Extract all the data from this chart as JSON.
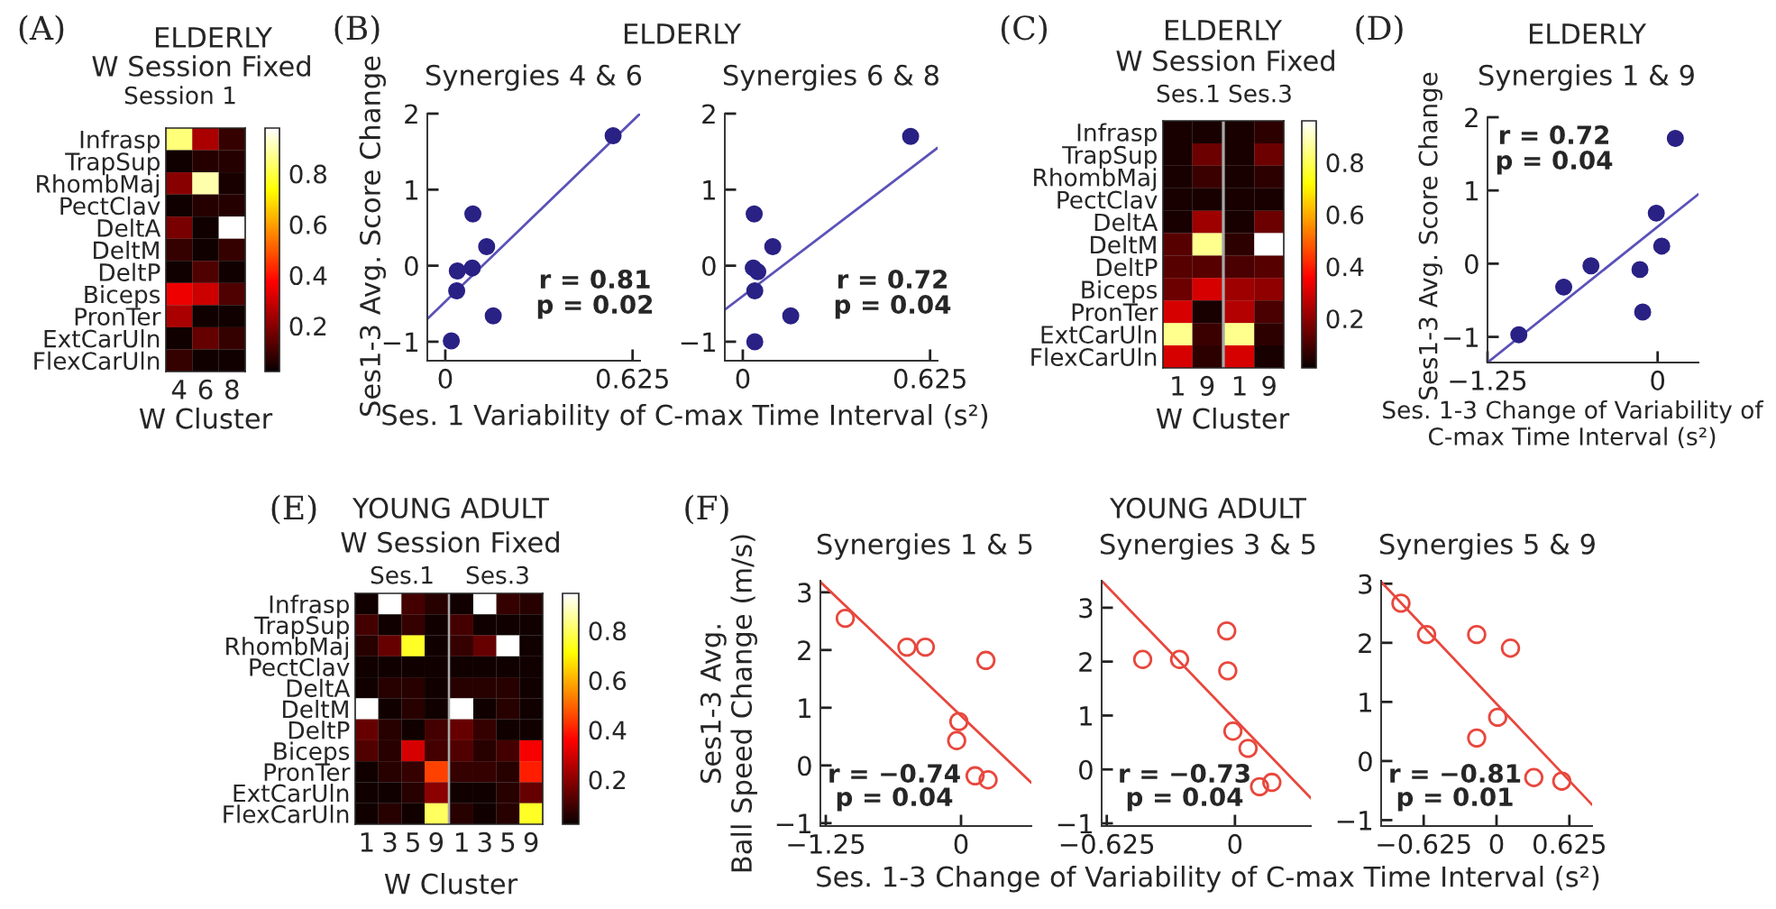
{
  "chart_data": [
    {
      "type": "heatmap",
      "title": "ELDERLY",
      "subtitle": "W Session Fixed",
      "annotations": [
        "(A)",
        "Session 1"
      ],
      "xlabel": "W Cluster",
      "categories": [
        "4",
        "6",
        "8"
      ],
      "y_categories": [
        "Infrasp",
        "TrapSup",
        "RhombMaj",
        "PectClav",
        "DeltA",
        "DeltM",
        "DeltP",
        "Biceps",
        "PronTer",
        "ExtCarUln",
        "FlexCarUln"
      ],
      "cells": [
        [
          0.85,
          0.25,
          0.08
        ],
        [
          0.03,
          0.06,
          0.06
        ],
        [
          0.2,
          0.9,
          0.04
        ],
        [
          0.03,
          0.06,
          0.06
        ],
        [
          0.18,
          0.03,
          0.98
        ],
        [
          0.08,
          0.03,
          0.08
        ],
        [
          0.03,
          0.12,
          0.03
        ],
        [
          0.35,
          0.3,
          0.12
        ],
        [
          0.25,
          0.03,
          0.03
        ],
        [
          0.03,
          0.15,
          0.08
        ],
        [
          0.08,
          0.03,
          0.03
        ]
      ],
      "clim": [
        0.02,
        0.98
      ],
      "cticks": [
        0.2,
        0.4,
        0.6,
        0.8
      ]
    },
    {
      "type": "scatter",
      "title": "Synergies 4 & 6",
      "annotations": [
        "(B)",
        "ELDERLY",
        "r = 0.81",
        "p = 0.02"
      ],
      "xlabel": "Ses. 1 Variability of C-max Time Interval (s²)",
      "ylabel": "Ses1-3 Avg. Score Change",
      "xlim": [
        -0.06,
        0.65
      ],
      "ylim": [
        -1.25,
        2
      ],
      "xticks": [
        0,
        0.625
      ],
      "yticks": [
        -1,
        0,
        1,
        2
      ],
      "series": [
        {
          "marker": "circle",
          "color": "#2a2185",
          "x": [
            0.02,
            0.038,
            0.04,
            0.092,
            0.09,
            0.138,
            0.16,
            0.56
          ],
          "values": [
            -0.99,
            -0.33,
            -0.07,
            0.68,
            -0.03,
            0.25,
            -0.66,
            1.71
          ]
        },
        {
          "type": "line",
          "marker": "none",
          "color": "#5b52b8",
          "x": [
            -0.06,
            0.65
          ],
          "values": [
            -0.7,
            2.0
          ]
        }
      ]
    },
    {
      "type": "scatter",
      "title": "Synergies 6 & 8",
      "annotations": [
        "r = 0.72",
        "p = 0.04"
      ],
      "xlim": [
        -0.06,
        0.65
      ],
      "ylim": [
        -1.25,
        2
      ],
      "xticks": [
        0,
        0.625
      ],
      "yticks": [
        -1,
        0,
        1,
        2
      ],
      "series": [
        {
          "marker": "circle",
          "color": "#2a2185",
          "x": [
            0.038,
            0.035,
            0.05,
            0.1,
            0.04,
            0.16,
            0.04,
            0.56
          ],
          "values": [
            0.68,
            -0.03,
            -0.08,
            0.25,
            -0.33,
            -0.66,
            -1.0,
            1.7
          ]
        },
        {
          "type": "line",
          "marker": "none",
          "color": "#5b52b8",
          "x": [
            -0.06,
            0.65
          ],
          "values": [
            -0.58,
            1.55
          ]
        }
      ]
    },
    {
      "type": "heatmap",
      "title": "ELDERLY",
      "subtitle": "W Session Fixed",
      "annotations": [
        "(C)",
        "Ses.1",
        "Ses.3"
      ],
      "xlabel": "W Cluster",
      "categories": [
        "1",
        "9",
        "1",
        "9"
      ],
      "y_categories": [
        "Infrasp",
        "TrapSup",
        "RhombMaj",
        "PectClav",
        "DeltA",
        "DeltM",
        "DeltP",
        "Biceps",
        "PronTer",
        "ExtCarUln",
        "FlexCarUln"
      ],
      "cells": [
        [
          0.03,
          0.03,
          0.03,
          0.06
        ],
        [
          0.03,
          0.15,
          0.03,
          0.15
        ],
        [
          0.03,
          0.08,
          0.03,
          0.06
        ],
        [
          0.03,
          0.03,
          0.03,
          0.03
        ],
        [
          0.03,
          0.22,
          0.03,
          0.15
        ],
        [
          0.12,
          0.85,
          0.06,
          0.96
        ],
        [
          0.12,
          0.12,
          0.1,
          0.12
        ],
        [
          0.15,
          0.3,
          0.22,
          0.2
        ],
        [
          0.3,
          0.03,
          0.25,
          0.1
        ],
        [
          0.85,
          0.08,
          0.85,
          0.06
        ],
        [
          0.3,
          0.06,
          0.3,
          0.03
        ]
      ],
      "clim": [
        0.01,
        0.96
      ],
      "cticks": [
        0.2,
        0.4,
        0.6,
        0.8
      ]
    },
    {
      "type": "scatter",
      "title": "ELDERLY",
      "subtitle": "Synergies 1 & 9",
      "annotations": [
        "(D)",
        "r = 0.72",
        "p = 0.04"
      ],
      "xlabel": "Ses. 1-3 Change of Variability of\nC-max Time Interval (s²)",
      "ylabel": "Ses1-3 Avg. Score Change",
      "xlim": [
        -1.25,
        0.3
      ],
      "ylim": [
        -1.35,
        2
      ],
      "xticks": [
        -1.25,
        0
      ],
      "yticks": [
        -1,
        0,
        1,
        2
      ],
      "series": [
        {
          "marker": "circle",
          "color": "#2a2185",
          "x": [
            -1.02,
            -0.69,
            -0.49,
            -0.13,
            -0.11,
            -0.01,
            0.03,
            0.13
          ],
          "values": [
            -0.97,
            -0.32,
            -0.03,
            -0.08,
            -0.66,
            0.69,
            0.24,
            1.71
          ]
        },
        {
          "type": "line",
          "marker": "none",
          "color": "#5b52b8",
          "x": [
            -1.25,
            0.3
          ],
          "values": [
            -1.35,
            0.95
          ]
        }
      ]
    },
    {
      "type": "heatmap",
      "title": "YOUNG ADULT",
      "subtitle": "W Session Fixed",
      "annotations": [
        "(E)",
        "Ses.1",
        "Ses.3"
      ],
      "xlabel": "W Cluster",
      "categories": [
        "1",
        "3",
        "5",
        "9",
        "1",
        "3",
        "5",
        "9"
      ],
      "y_categories": [
        "Infrasp",
        "TrapSup",
        "RhombMaj",
        "PectClav",
        "DeltA",
        "DeltM",
        "DeltP",
        "Biceps",
        "PronTer",
        "ExtCarUln",
        "FlexCarUln"
      ],
      "cells": [
        [
          0.03,
          0.95,
          0.1,
          0.06,
          0.03,
          0.95,
          0.08,
          0.06
        ],
        [
          0.1,
          0.03,
          0.08,
          0.03,
          0.1,
          0.03,
          0.03,
          0.03
        ],
        [
          0.06,
          0.15,
          0.75,
          0.03,
          0.08,
          0.15,
          0.95,
          0.03
        ],
        [
          0.03,
          0.03,
          0.03,
          0.03,
          0.03,
          0.03,
          0.03,
          0.03
        ],
        [
          0.03,
          0.06,
          0.06,
          0.03,
          0.06,
          0.06,
          0.06,
          0.03
        ],
        [
          0.95,
          0.03,
          0.06,
          0.03,
          0.95,
          0.03,
          0.06,
          0.03
        ],
        [
          0.15,
          0.06,
          0.03,
          0.1,
          0.15,
          0.08,
          0.03,
          0.03
        ],
        [
          0.12,
          0.06,
          0.3,
          0.1,
          0.12,
          0.06,
          0.1,
          0.35
        ],
        [
          0.03,
          0.06,
          0.08,
          0.45,
          0.08,
          0.08,
          0.06,
          0.4
        ],
        [
          0.03,
          0.03,
          0.06,
          0.2,
          0.03,
          0.03,
          0.06,
          0.15
        ],
        [
          0.03,
          0.06,
          0.03,
          0.8,
          0.06,
          0.03,
          0.06,
          0.75
        ]
      ],
      "clim": [
        0.02,
        0.95
      ],
      "cticks": [
        0.2,
        0.4,
        0.6,
        0.8
      ]
    },
    {
      "type": "scatter",
      "title": "Synergies 1 & 5",
      "annotations": [
        "(F)",
        "YOUNG ADULT",
        "r = −0.74",
        "p = 0.04"
      ],
      "xlabel": "Ses. 1-3 Change of Variability of C-max Time Interval (s²)",
      "ylabel": "Ses1-3 Avg.\nBall Speed Change (m/s)",
      "xlim": [
        -1.3,
        0.65
      ],
      "ylim": [
        -1.05,
        3.2
      ],
      "xticks": [
        -1.25,
        0
      ],
      "yticks": [
        -1,
        0,
        1,
        2,
        3
      ],
      "series": [
        {
          "marker": "circle",
          "color": "#e8473d",
          "x": [
            -1.07,
            -0.5,
            -0.33,
            0.23,
            -0.02,
            -0.04,
            0.13,
            0.25
          ],
          "values": [
            2.55,
            2.05,
            2.05,
            1.82,
            0.76,
            0.43,
            -0.18,
            -0.25
          ]
        },
        {
          "type": "line",
          "marker": "none",
          "color": "#e8473d",
          "x": [
            -1.3,
            0.65
          ],
          "values": [
            3.18,
            -0.3
          ]
        }
      ]
    },
    {
      "type": "scatter",
      "title": "Synergies 3 & 5",
      "annotations": [
        "r = −0.73",
        "p = 0.04"
      ],
      "xlim": [
        -0.65,
        0.37
      ],
      "ylim": [
        -1.05,
        3.5
      ],
      "xticks": [
        -0.625,
        0
      ],
      "yticks": [
        -1,
        0,
        1,
        2,
        3
      ],
      "series": [
        {
          "marker": "circle",
          "color": "#e8473d",
          "x": [
            -0.45,
            -0.27,
            -0.04,
            -0.035,
            -0.01,
            0.064,
            0.12,
            0.18
          ],
          "values": [
            2.04,
            2.04,
            2.57,
            1.83,
            0.71,
            0.39,
            -0.32,
            -0.24
          ]
        },
        {
          "type": "line",
          "marker": "none",
          "color": "#e8473d",
          "x": [
            -0.65,
            0.37
          ],
          "values": [
            3.5,
            -0.53
          ]
        }
      ]
    },
    {
      "type": "scatter",
      "title": "Synergies 5 & 9",
      "annotations": [
        "r = −0.81",
        "p = 0.01"
      ],
      "xlim": [
        -0.99,
        0.82
      ],
      "ylim": [
        -1.1,
        3.05
      ],
      "xticks": [
        -0.625,
        0,
        0.625
      ],
      "yticks": [
        -1,
        0,
        1,
        2,
        3
      ],
      "series": [
        {
          "marker": "circle",
          "color": "#e8473d",
          "x": [
            -0.82,
            -0.6,
            -0.17,
            0.12,
            0.01,
            -0.17,
            0.32,
            0.56
          ],
          "values": [
            2.67,
            2.14,
            2.14,
            1.91,
            0.74,
            0.39,
            -0.28,
            -0.34
          ]
        },
        {
          "type": "line",
          "marker": "none",
          "color": "#e8473d",
          "x": [
            -0.99,
            0.82
          ],
          "values": [
            3.03,
            -0.74
          ]
        }
      ]
    }
  ]
}
